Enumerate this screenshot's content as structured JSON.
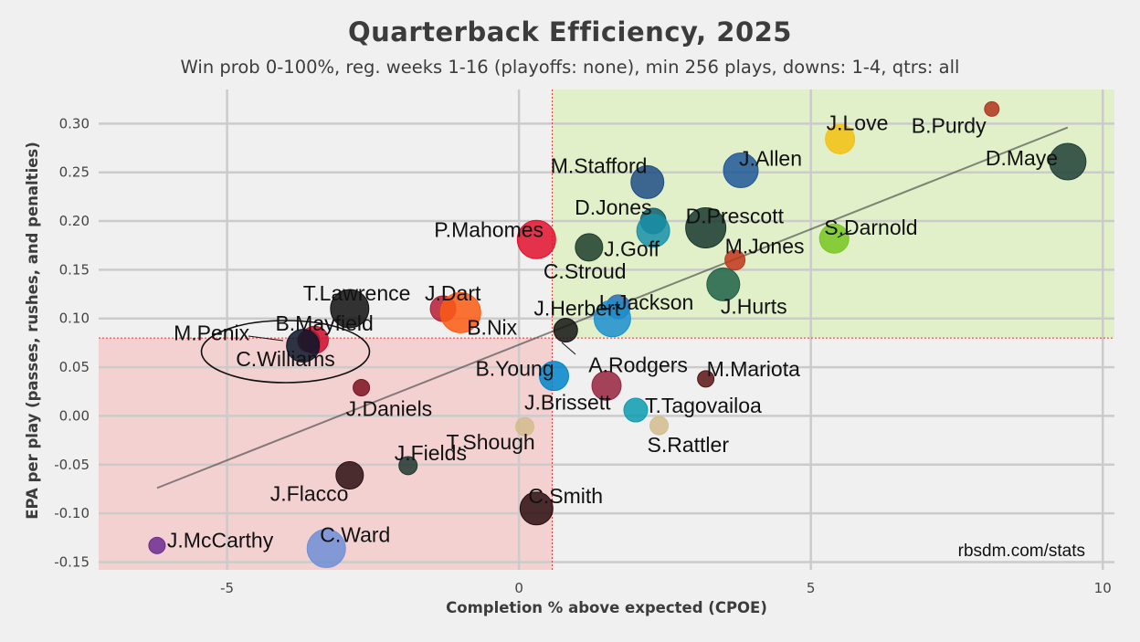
{
  "chart_data": {
    "type": "scatter",
    "title": "Quarterback Efficiency, 2025",
    "subtitle": "Win prob 0-100%, reg. weeks 1-16 (playoffs: none), min 256 plays, downs: 1-4, qtrs: all",
    "xlabel": "Completion % above expected (CPOE)",
    "ylabel": "EPA per play (passes, rushes, and penalties)",
    "source": "rbsdm.com/stats",
    "xlim": [
      -7.2,
      10.2
    ],
    "ylim": [
      -0.158,
      0.335
    ],
    "xticks": [
      -5,
      0,
      5,
      10
    ],
    "yticks": [
      -0.15,
      -0.1,
      -0.05,
      0.0,
      0.05,
      0.1,
      0.15,
      0.2,
      0.25,
      0.3
    ],
    "ytick_labels": [
      "-0.15",
      "-0.10",
      "-0.05",
      "0.00",
      "0.05",
      "0.10",
      "0.15",
      "0.20",
      "0.25",
      "0.30"
    ],
    "grid": true,
    "reference_lines": {
      "x": 0.57,
      "y": 0.08
    },
    "quadrants": [
      {
        "name": "good",
        "color": "#d6f0a8"
      },
      {
        "name": "bad",
        "color": "#f5b8b8"
      }
    ],
    "trend_line": [
      [
        -6.2,
        -0.074
      ],
      [
        9.4,
        0.296
      ]
    ],
    "highlight_ellipse": {
      "center": [
        -4.0,
        0.066
      ],
      "label": "C.Williams"
    },
    "points": [
      {
        "name": "B.Purdy",
        "x": 8.1,
        "y": 0.315,
        "size": 8,
        "color": "#b0331d"
      },
      {
        "name": "J.Love",
        "x": 5.5,
        "y": 0.284,
        "size": 16,
        "color": "#f2c111"
      },
      {
        "name": "D.Maye",
        "x": 9.4,
        "y": 0.261,
        "size": 20,
        "color": "#1e3f36"
      },
      {
        "name": "J.Allen",
        "x": 3.8,
        "y": 0.252,
        "size": 19,
        "color": "#1f5799"
      },
      {
        "name": "M.Stafford",
        "x": 2.2,
        "y": 0.24,
        "size": 18,
        "color": "#1e4d85"
      },
      {
        "name": "D.Jones",
        "x": 2.3,
        "y": 0.2,
        "size": 14,
        "color": "#0d5f6b"
      },
      {
        "name": "D.Prescott",
        "x": 3.2,
        "y": 0.193,
        "size": 22,
        "color": "#18382e"
      },
      {
        "name": "J.Goff",
        "x": 2.3,
        "y": 0.19,
        "size": 18,
        "color": "#1791a8"
      },
      {
        "name": "S.Darnold",
        "x": 5.4,
        "y": 0.182,
        "size": 16,
        "color": "#77c521"
      },
      {
        "name": "P.Mahomes",
        "x": 0.3,
        "y": 0.181,
        "size": 21,
        "color": "#e0112b"
      },
      {
        "name": "C.Stroud",
        "x": 1.2,
        "y": 0.173,
        "size": 15,
        "color": "#1d3d2c"
      },
      {
        "name": "M.Jones",
        "x": 3.7,
        "y": 0.16,
        "size": 11,
        "color": "#c0361b"
      },
      {
        "name": "J.Hurts",
        "x": 3.5,
        "y": 0.135,
        "size": 18,
        "color": "#1e6148"
      },
      {
        "name": "L.Jackson",
        "x": 1.7,
        "y": 0.112,
        "size": 13,
        "color": "#2a6db3"
      },
      {
        "name": "T.Lawrence",
        "x": -2.9,
        "y": 0.11,
        "size": 21,
        "color": "#111111"
      },
      {
        "name": "J.Dart",
        "x": -1.3,
        "y": 0.11,
        "size": 14,
        "color": "#b51d35"
      },
      {
        "name": "B.Nix",
        "x": -1.0,
        "y": 0.106,
        "size": 22,
        "color": "#fb5a13"
      },
      {
        "name": "J.Herbert",
        "x": 1.6,
        "y": 0.1,
        "size": 20,
        "color": "#1b8fcf"
      },
      {
        "name": "A.Rodgers",
        "x": 0.8,
        "y": 0.088,
        "size": 13,
        "color": "#141414"
      },
      {
        "name": "B.Mayfield",
        "x": -3.5,
        "y": 0.078,
        "size": 15,
        "color": "#cf0a2c"
      },
      {
        "name": "M.Penix",
        "x": -3.6,
        "y": 0.077,
        "size": 12,
        "color": "#a71930"
      },
      {
        "name": "C.Williams",
        "x": -3.7,
        "y": 0.072,
        "size": 18,
        "color": "#0b162a"
      },
      {
        "name": "B.Young",
        "x": 0.6,
        "y": 0.041,
        "size": 16,
        "color": "#0085ca"
      },
      {
        "name": "M.Mariota",
        "x": 3.2,
        "y": 0.038,
        "size": 9,
        "color": "#5a1414"
      },
      {
        "name": "J.Brissett",
        "x": 1.5,
        "y": 0.031,
        "size": 16,
        "color": "#97233f"
      },
      {
        "name": "J.Daniels",
        "x": -2.7,
        "y": 0.029,
        "size": 9,
        "color": "#7a1220"
      },
      {
        "name": "T.Tagovailoa",
        "x": 2.0,
        "y": 0.006,
        "size": 13,
        "color": "#0c9caf"
      },
      {
        "name": "S.Rattler",
        "x": 2.4,
        "y": -0.01,
        "size": 10,
        "color": "#d3bc8d"
      },
      {
        "name": "T.Shough",
        "x": 0.1,
        "y": -0.011,
        "size": 10,
        "color": "#d3bc8d"
      },
      {
        "name": "J.Fields",
        "x": -1.9,
        "y": -0.051,
        "size": 10,
        "color": "#203731"
      },
      {
        "name": "J.Flacco",
        "x": -2.9,
        "y": -0.061,
        "size": 15,
        "color": "#2b0f12"
      },
      {
        "name": "C.Smith",
        "x": 0.3,
        "y": -0.095,
        "size": 18,
        "color": "#2a0d10"
      },
      {
        "name": "J.McCarthy",
        "x": -6.2,
        "y": -0.133,
        "size": 9,
        "color": "#6b2c91"
      },
      {
        "name": "C.Ward",
        "x": -3.3,
        "y": -0.136,
        "size": 21,
        "color": "#6f8fd6"
      }
    ]
  }
}
